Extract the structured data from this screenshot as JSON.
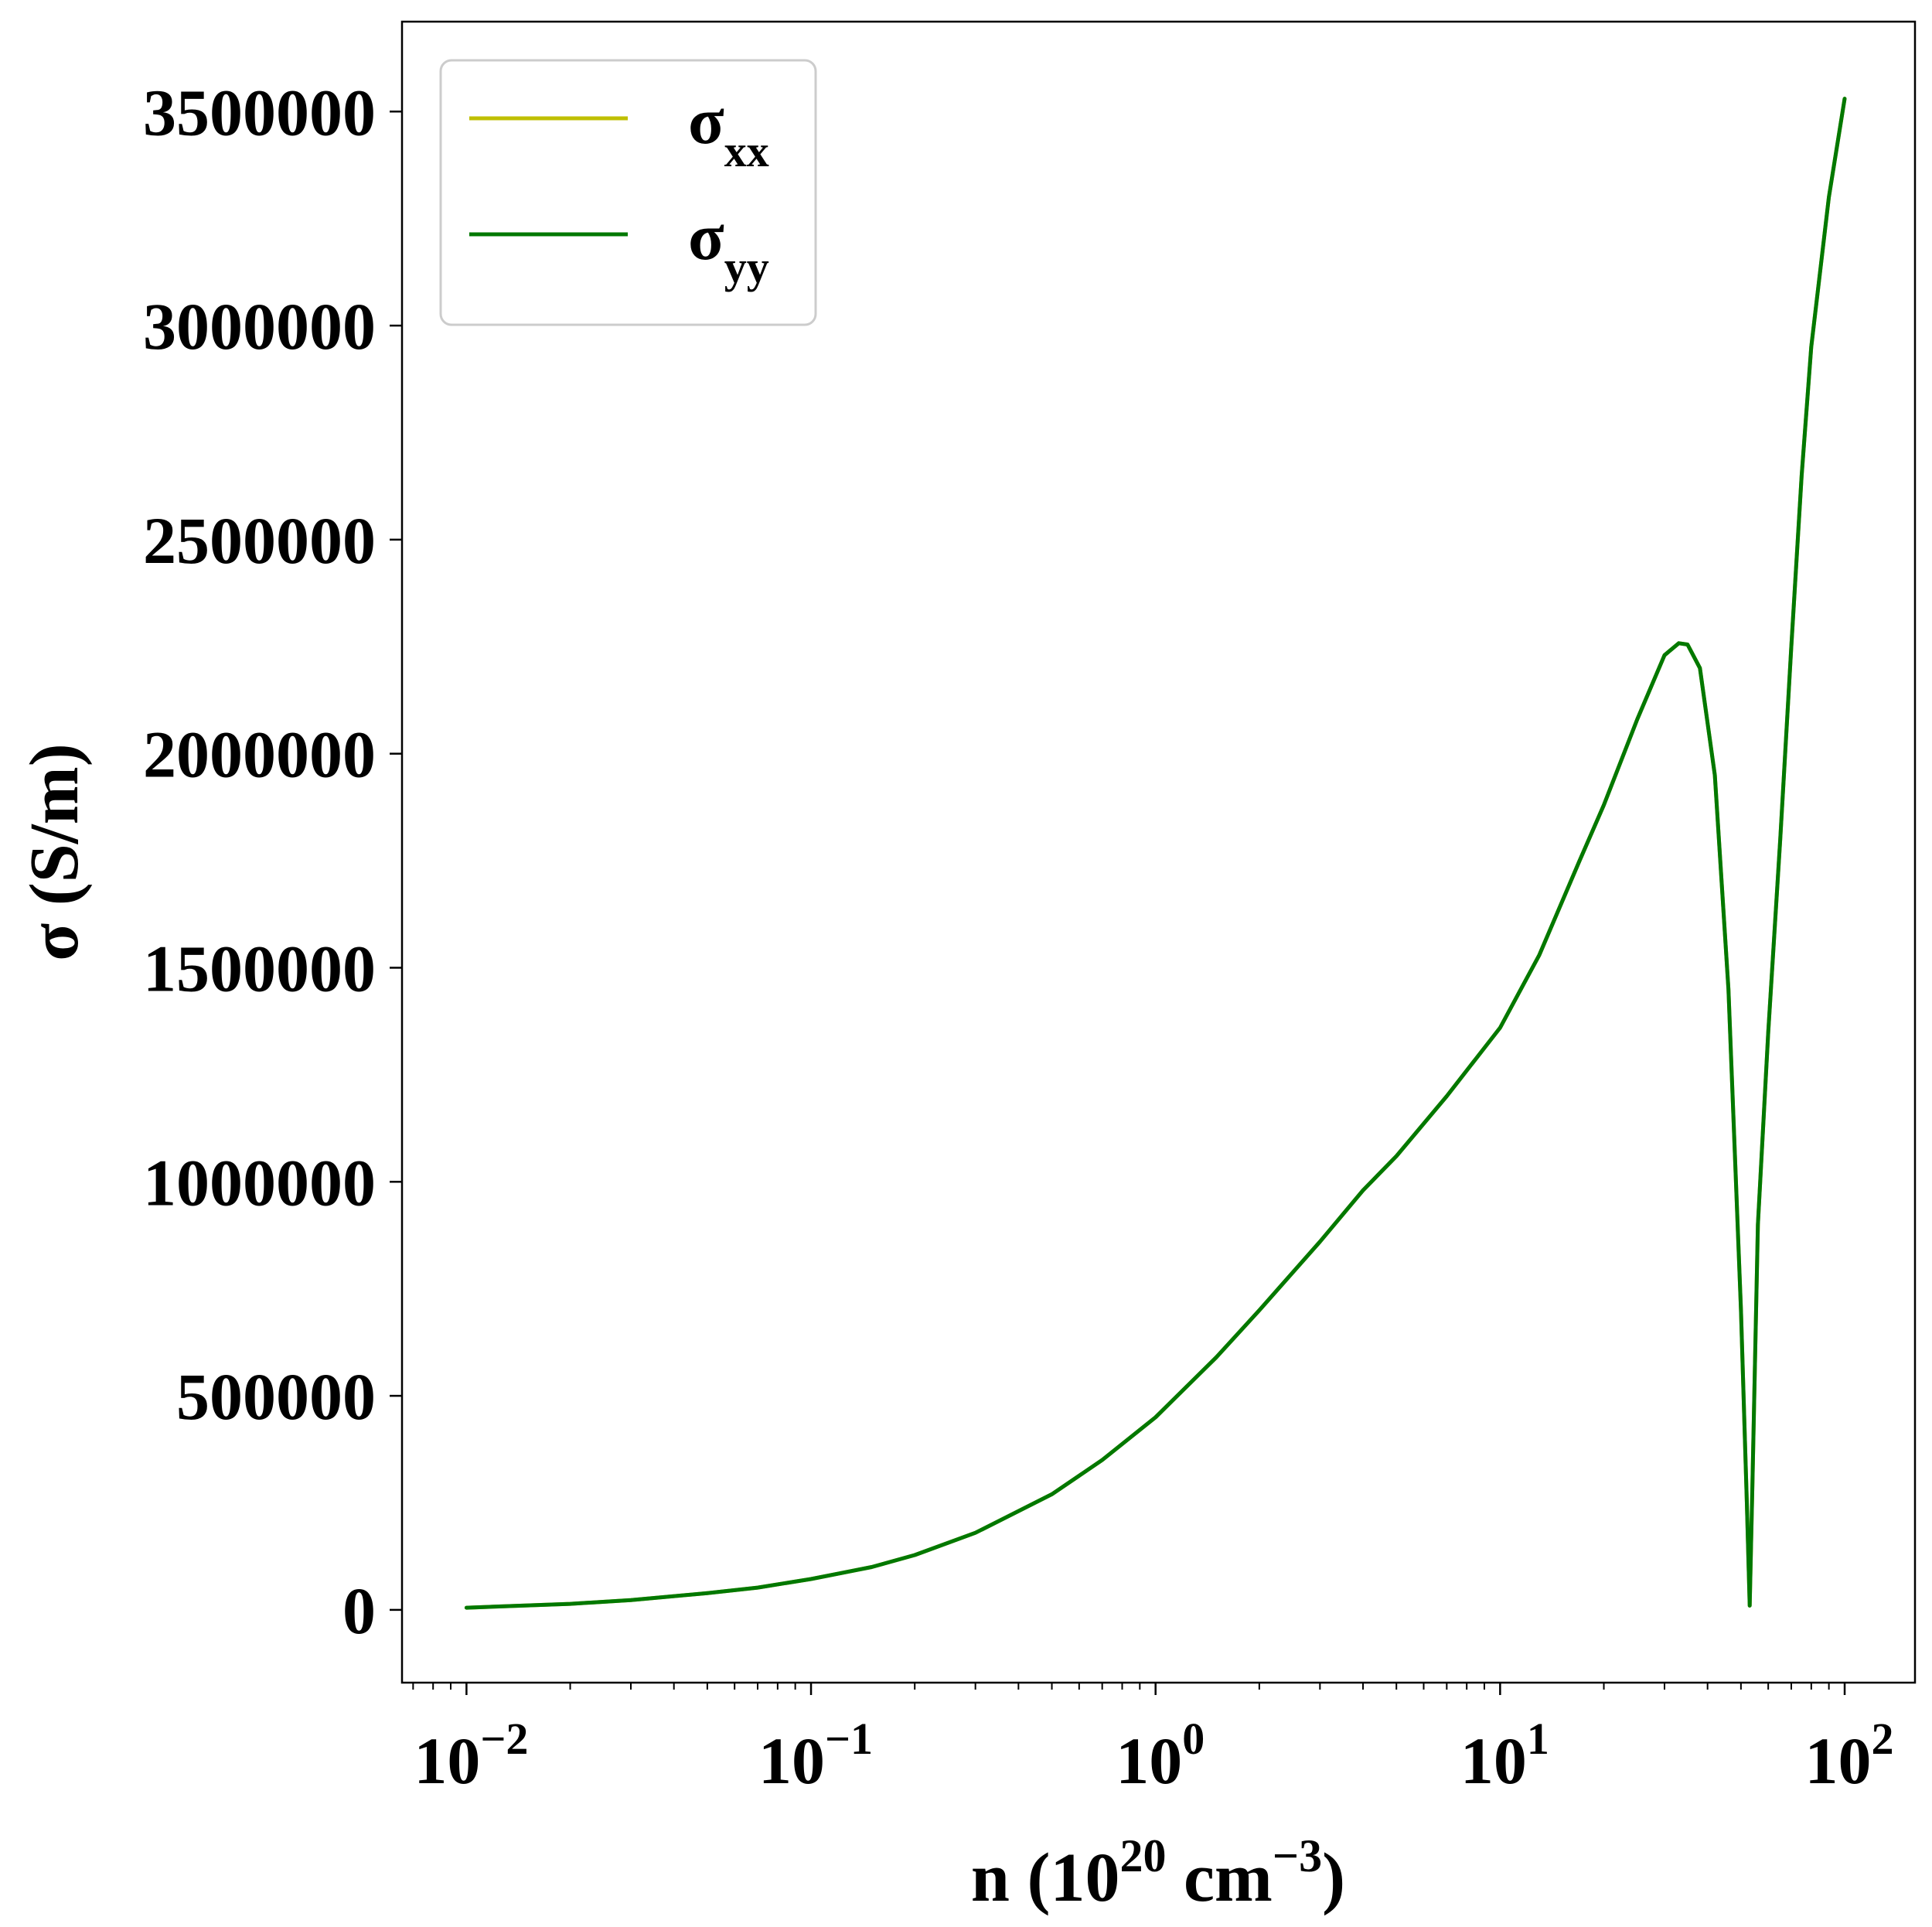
{
  "chart_data": {
    "type": "line",
    "x_scale": "log",
    "xlim": [
      0.0065,
      160
    ],
    "ylim": [
      -170000,
      3710000
    ],
    "grid": false,
    "legend_position": "top-left",
    "xlabel": {
      "prefix": "n (10",
      "sup1": "20",
      "middle": " cm",
      "sup2": "−3",
      "suffix": ")"
    },
    "ylabel": "σ (S/m)",
    "y_ticks": [
      {
        "value": 0,
        "label": "0"
      },
      {
        "value": 500000,
        "label": "500000"
      },
      {
        "value": 1000000,
        "label": "1000000"
      },
      {
        "value": 1500000,
        "label": "1500000"
      },
      {
        "value": 2000000,
        "label": "2000000"
      },
      {
        "value": 2500000,
        "label": "2500000"
      },
      {
        "value": 3000000,
        "label": "3000000"
      },
      {
        "value": 3500000,
        "label": "3500000"
      }
    ],
    "x_ticks": [
      {
        "value": 0.01,
        "base": "10",
        "exp": "−2"
      },
      {
        "value": 0.1,
        "base": "10",
        "exp": "−1"
      },
      {
        "value": 1,
        "base": "10",
        "exp": "0"
      },
      {
        "value": 10,
        "base": "10",
        "exp": "1"
      },
      {
        "value": 100,
        "base": "10",
        "exp": "2"
      }
    ],
    "series": [
      {
        "name": "σ",
        "name_sub": "xx",
        "color": "#bfbf00",
        "x": [
          0.01,
          0.02,
          0.03,
          0.05,
          0.07,
          0.1,
          0.15,
          0.2,
          0.3,
          0.5,
          0.7,
          1.0,
          1.5,
          2.0,
          3.0,
          4.0,
          5.0,
          7.0,
          10.0,
          13.0,
          17.0,
          20.0,
          25.0,
          30.0,
          33.0,
          35.0,
          38.0,
          42.0,
          46.0,
          50.0,
          52.0,
          53.0,
          54.0,
          56.0,
          60.0,
          65.0,
          70.0,
          75.0,
          80.0,
          90.0,
          100.0
        ],
        "y": [
          5000,
          14000,
          23000,
          39000,
          52000,
          72000,
          100000,
          128000,
          180000,
          270000,
          350000,
          450000,
          590000,
          700000,
          860000,
          980000,
          1060000,
          1200000,
          1360000,
          1530000,
          1750000,
          1880000,
          2080000,
          2230000,
          2258000,
          2255000,
          2200000,
          1950000,
          1450000,
          700000,
          250000,
          10000,
          300000,
          900000,
          1350000,
          1800000,
          2250000,
          2650000,
          2950000,
          3300000,
          3530000
        ]
      },
      {
        "name": "σ",
        "name_sub": "yy",
        "color": "#007800",
        "x": [
          0.01,
          0.02,
          0.03,
          0.05,
          0.07,
          0.1,
          0.15,
          0.2,
          0.3,
          0.5,
          0.7,
          1.0,
          1.5,
          2.0,
          3.0,
          4.0,
          5.0,
          7.0,
          10.0,
          13.0,
          17.0,
          20.0,
          25.0,
          30.0,
          33.0,
          35.0,
          38.0,
          42.0,
          46.0,
          50.0,
          52.0,
          53.0,
          54.0,
          56.0,
          60.0,
          65.0,
          70.0,
          75.0,
          80.0,
          90.0,
          100.0
        ],
        "y": [
          5000,
          14000,
          23000,
          39000,
          52000,
          72000,
          100000,
          128000,
          180000,
          270000,
          350000,
          450000,
          590000,
          700000,
          860000,
          980000,
          1060000,
          1200000,
          1360000,
          1530000,
          1750000,
          1880000,
          2080000,
          2230000,
          2258000,
          2255000,
          2200000,
          1950000,
          1450000,
          700000,
          250000,
          10000,
          300000,
          900000,
          1350000,
          1800000,
          2250000,
          2650000,
          2950000,
          3300000,
          3530000
        ]
      }
    ]
  }
}
